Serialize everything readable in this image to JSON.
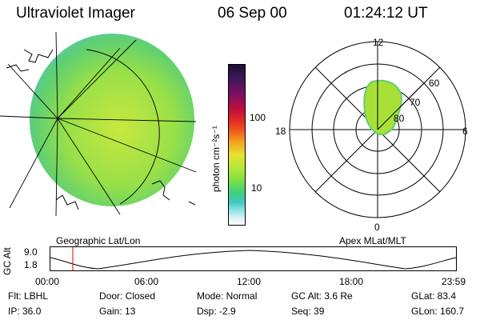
{
  "header": {
    "instrument": "Ultraviolet Imager",
    "date": "06 Sep 00",
    "time": "01:24:12 UT"
  },
  "colorbar": {
    "unit_label": "photon cm⁻²s⁻¹",
    "ticks": [
      "100",
      "10"
    ],
    "colors": [
      "#1a1030",
      "#3a1858",
      "#7a1060",
      "#c0103a",
      "#e63020",
      "#f06020",
      "#f4a020",
      "#e8e030",
      "#b8e838",
      "#80e040",
      "#40d080",
      "#40c8c0",
      "#80e0e0",
      "#d0f0f0",
      "#ffffff"
    ]
  },
  "left_panel": {
    "label": "Geographic Lat/Lon"
  },
  "right_panel": {
    "label": "Apex MLat/MLT",
    "mlt_labels": [
      "12",
      "18",
      "6",
      "0"
    ],
    "lat_labels": [
      "60",
      "70",
      "80"
    ]
  },
  "altitude_plot": {
    "ylabel": "GC Alt",
    "yticks": [
      "9.0",
      "1.8"
    ],
    "xticks": [
      "00:00",
      "06:00",
      "12:00",
      "18:00",
      "23:59"
    ],
    "marker_time": "01:24"
  },
  "info": {
    "filter": "Flt: LBHL",
    "door": "Door: Closed",
    "mode": "Mode: Normal",
    "gc_alt": "GC Alt: 3.6 Re",
    "glat": "GLat:  83.4",
    "ip": "IP: 36.0",
    "gain": "Gain: 13",
    "dsp": "Dsp:   -2.9",
    "seq": "Seq: 39",
    "glon": "GLon: 160.7"
  }
}
